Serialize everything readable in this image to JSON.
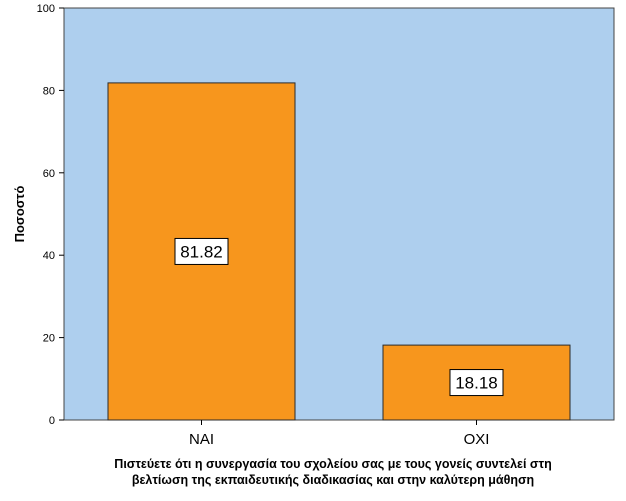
{
  "chart_data": {
    "type": "bar",
    "categories": [
      "ΝΑΙ",
      "ΟΧΙ"
    ],
    "values": [
      81.82,
      18.18
    ],
    "data_labels": [
      "81.82",
      "18.18"
    ],
    "ylabel": "Ποσοστό",
    "xlabel_lines": [
      "Πιστεύετε ότι η συνεργασία του σχολείου σας με τους γονείς συντελεί στη",
      "βελτίωση της εκπαιδευτικής διαδικασίας και στην καλύτερη μάθηση"
    ],
    "ylim": [
      0,
      100
    ],
    "yticks": [
      0,
      20,
      40,
      60,
      80,
      100
    ],
    "grid": false,
    "legend": "none",
    "colors": {
      "plot_background": "#aecfee",
      "bar_fill": "#f7961d",
      "bar_stroke": "#2b2b2b",
      "label_box": "#ffffff"
    }
  }
}
